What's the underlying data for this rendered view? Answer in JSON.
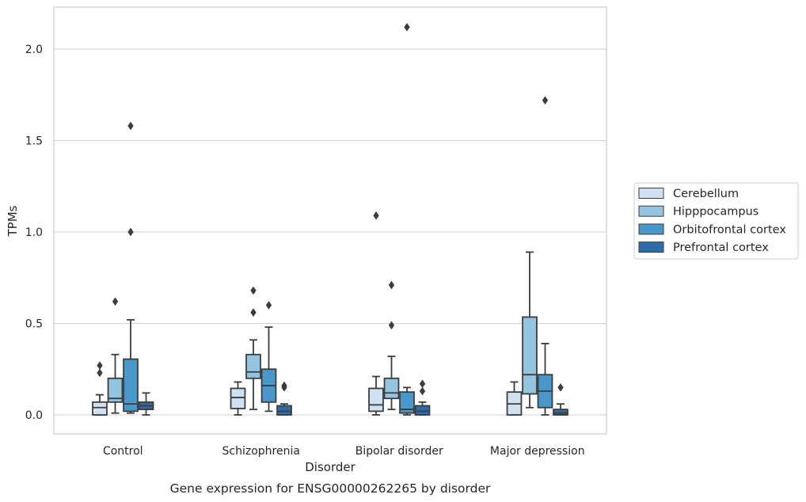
{
  "chart_data": {
    "type": "box",
    "xlabel": "Disorder",
    "ylabel": "TPMs",
    "caption": "Gene expression for ENSG00000262265 by disorder",
    "ylim": [
      -0.1,
      2.25
    ],
    "yticks": [
      "0.0",
      "0.5",
      "1.0",
      "1.5",
      "2.0"
    ],
    "grid": "horizontal",
    "legend_placement": "right",
    "categories": [
      "Control",
      "Schizophrenia",
      "Bipolar disorder",
      "Major depression"
    ],
    "series": [
      {
        "name": "Cerebellum",
        "color": "#d0e1f2",
        "boxes": [
          {
            "whislo": 0.0,
            "q1": 0.0,
            "med": 0.04,
            "q3": 0.07,
            "whishi": 0.11,
            "fliers": [
              0.23,
              0.27
            ]
          },
          {
            "whislo": 0.0,
            "q1": 0.035,
            "med": 0.095,
            "q3": 0.145,
            "whishi": 0.18,
            "fliers": []
          },
          {
            "whislo": 0.0,
            "q1": 0.02,
            "med": 0.055,
            "q3": 0.145,
            "whishi": 0.21,
            "fliers": [
              1.09
            ]
          },
          {
            "whislo": 0.0,
            "q1": 0.0,
            "med": 0.06,
            "q3": 0.125,
            "whishi": 0.18,
            "fliers": []
          }
        ]
      },
      {
        "name": "Hipppocampus",
        "color": "#94c4df",
        "boxes": [
          {
            "whislo": 0.01,
            "q1": 0.07,
            "med": 0.09,
            "q3": 0.2,
            "whishi": 0.33,
            "fliers": [
              0.62
            ]
          },
          {
            "whislo": 0.03,
            "q1": 0.2,
            "med": 0.235,
            "q3": 0.33,
            "whishi": 0.41,
            "fliers": [
              0.56,
              0.68
            ]
          },
          {
            "whislo": 0.03,
            "q1": 0.09,
            "med": 0.12,
            "q3": 0.2,
            "whishi": 0.32,
            "fliers": [
              0.49,
              0.71
            ]
          },
          {
            "whislo": 0.04,
            "q1": 0.115,
            "med": 0.22,
            "q3": 0.535,
            "whishi": 0.89,
            "fliers": []
          }
        ]
      },
      {
        "name": "Orbitofrontal cortex",
        "color": "#4a98c9",
        "boxes": [
          {
            "whislo": 0.01,
            "q1": 0.02,
            "med": 0.06,
            "q3": 0.305,
            "whishi": 0.52,
            "fliers": [
              1.0,
              1.58
            ]
          },
          {
            "whislo": 0.02,
            "q1": 0.07,
            "med": 0.16,
            "q3": 0.25,
            "whishi": 0.48,
            "fliers": [
              0.6
            ]
          },
          {
            "whislo": 0.0,
            "q1": 0.01,
            "med": 0.03,
            "q3": 0.125,
            "whishi": 0.15,
            "fliers": [
              2.12
            ]
          },
          {
            "whislo": 0.0,
            "q1": 0.04,
            "med": 0.13,
            "q3": 0.22,
            "whishi": 0.39,
            "fliers": [
              1.72
            ]
          }
        ]
      },
      {
        "name": "Prefrontal cortex",
        "color": "#2e6ba9",
        "boxes": [
          {
            "whislo": 0.0,
            "q1": 0.03,
            "med": 0.05,
            "q3": 0.07,
            "whishi": 0.12,
            "fliers": []
          },
          {
            "whislo": 0.0,
            "q1": 0.0,
            "med": 0.02,
            "q3": 0.05,
            "whishi": 0.06,
            "fliers": [
              0.15,
              0.16
            ]
          },
          {
            "whislo": 0.0,
            "q1": 0.0,
            "med": 0.02,
            "q3": 0.05,
            "whishi": 0.07,
            "fliers": [
              0.13,
              0.17
            ]
          },
          {
            "whislo": 0.0,
            "q1": 0.0,
            "med": 0.01,
            "q3": 0.03,
            "whishi": 0.06,
            "fliers": [
              0.15
            ]
          }
        ]
      }
    ]
  }
}
